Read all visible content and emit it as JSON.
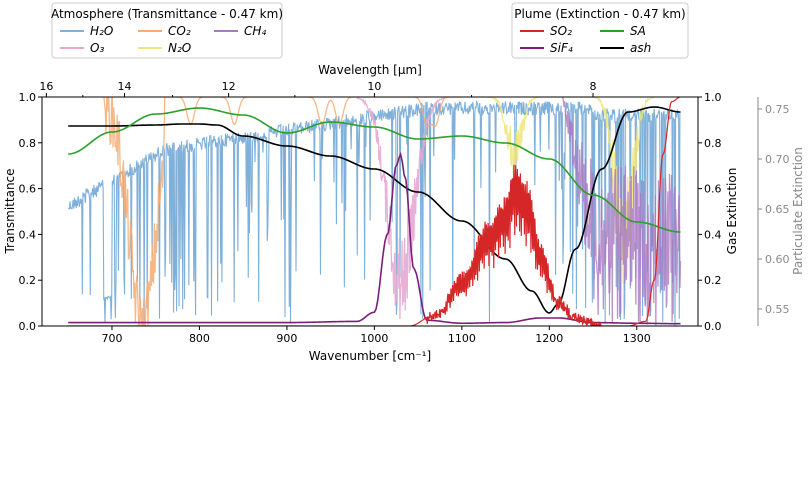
{
  "chart_data": {
    "type": "line",
    "x_bottom": {
      "label": "Wavenumber [cm⁻¹]",
      "range": [
        620,
        1370
      ],
      "ticks": [
        700,
        800,
        900,
        1000,
        1100,
        1200,
        1300
      ]
    },
    "x_top": {
      "label": "Wavelength [μm]",
      "ticks": [
        16,
        14,
        12,
        10,
        8
      ],
      "tick_labels": [
        "16",
        "14",
        "12",
        "10",
        "8"
      ]
    },
    "y_left": {
      "label": "Transmittance",
      "range": [
        0,
        1
      ],
      "ticks": [
        0,
        0.2,
        0.4,
        0.6,
        0.8,
        1.0
      ],
      "tick_labels": [
        "0.0",
        "0.2",
        "0.4",
        "0.6",
        "0.8",
        "1.0"
      ]
    },
    "y_right": {
      "label": "Gas Extinction",
      "range": [
        0,
        1
      ],
      "ticks": [
        0,
        0.2,
        0.4,
        0.6,
        0.8,
        1.0
      ],
      "tick_labels": [
        "0.0",
        "0.2",
        "0.4",
        "0.6",
        "0.8",
        "1.0"
      ]
    },
    "y_right2": {
      "label": "Particulate Extinction",
      "range": [
        0.533,
        0.762
      ],
      "ticks": [
        0.55,
        0.6,
        0.65,
        0.7,
        0.75
      ],
      "tick_labels": [
        "0.55",
        "0.60",
        "0.65",
        "0.70",
        "0.75"
      ]
    },
    "legend_atmosphere": {
      "title": "Atmosphere (Transmittance - 0.47 km)",
      "entries": [
        {
          "key": "h2o",
          "label": "H₂O",
          "color": "#7fb0d9"
        },
        {
          "key": "co2",
          "label": "CO₂",
          "color": "#f6ab73"
        },
        {
          "key": "ch4",
          "label": "CH₄",
          "color": "#a978c0"
        },
        {
          "key": "o3",
          "label": "O₃",
          "color": "#e7a9d2"
        },
        {
          "key": "n2o",
          "label": "N₂O",
          "color": "#efe57a"
        }
      ]
    },
    "legend_plume": {
      "title": "Plume (Extinction - 0.47 km)",
      "entries": [
        {
          "key": "so2",
          "label": "SO₂",
          "color": "#d62728"
        },
        {
          "key": "sa",
          "label": "SA",
          "color": "#2ca02c"
        },
        {
          "key": "sif4",
          "label": "SiF₄",
          "color": "#7b1f7b"
        },
        {
          "key": "ash",
          "label": "ash",
          "color": "#000000"
        }
      ]
    },
    "series": [
      {
        "name": "ash (particulate extinction)",
        "axis": "y_right2",
        "color": "#000000",
        "x": [
          650,
          700,
          750,
          780,
          800,
          820,
          850,
          900,
          950,
          1000,
          1050,
          1100,
          1150,
          1180,
          1200,
          1210,
          1230,
          1260,
          1290,
          1320,
          1350
        ],
        "y": [
          0.733,
          0.733,
          0.734,
          0.735,
          0.735,
          0.734,
          0.723,
          0.713,
          0.703,
          0.69,
          0.667,
          0.638,
          0.6,
          0.568,
          0.546,
          0.555,
          0.61,
          0.69,
          0.747,
          0.752,
          0.747
        ]
      },
      {
        "name": "SA (particulate extinction)",
        "axis": "y_right2",
        "color": "#2ca02c",
        "x": [
          650,
          700,
          750,
          800,
          850,
          900,
          950,
          1000,
          1050,
          1100,
          1150,
          1200,
          1250,
          1300,
          1350
        ],
        "y": [
          0.705,
          0.727,
          0.745,
          0.751,
          0.744,
          0.726,
          0.737,
          0.732,
          0.72,
          0.723,
          0.716,
          0.7,
          0.664,
          0.637,
          0.627
        ]
      },
      {
        "name": "SiF₄ (gas extinction)",
        "axis": "y_right",
        "color": "#7b1f7b",
        "x": [
          650,
          750,
          900,
          980,
          1000,
          1015,
          1025,
          1030,
          1035,
          1045,
          1060,
          1100,
          1150,
          1190,
          1210,
          1250,
          1300,
          1350
        ],
        "y": [
          0.015,
          0.015,
          0.015,
          0.02,
          0.06,
          0.4,
          0.7,
          0.75,
          0.65,
          0.25,
          0.025,
          0.012,
          0.015,
          0.035,
          0.035,
          0.015,
          0.012,
          0.01
        ]
      },
      {
        "name": "SO₂ (gas extinction)",
        "axis": "y_right",
        "color": "#d62728",
        "x": [
          650,
          1040,
          1070,
          1100,
          1130,
          1150,
          1160,
          1175,
          1190,
          1210,
          1230,
          1260,
          1290,
          1310,
          1320,
          1330,
          1340,
          1350
        ],
        "y": [
          0.0,
          0.0,
          0.05,
          0.22,
          0.45,
          0.55,
          0.7,
          0.62,
          0.35,
          0.12,
          0.04,
          0.0,
          0.0,
          0.02,
          0.2,
          0.75,
          0.98,
          1.0
        ]
      }
    ]
  }
}
